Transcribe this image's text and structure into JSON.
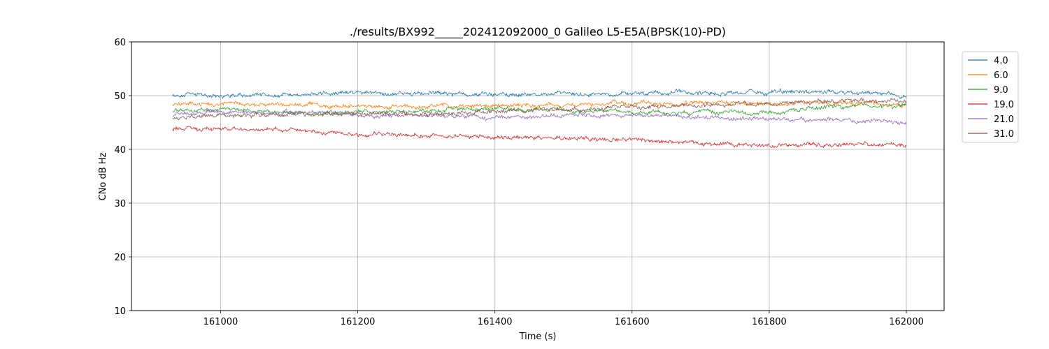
{
  "chart_data": {
    "type": "line",
    "title": "./results/BX992_____202412092000_0 Galileo L5-E5A(BPSK(10)-PD)",
    "xlabel": "Time (s)",
    "ylabel": "CNo dB Hz",
    "xlim": [
      160870,
      162055
    ],
    "ylim": [
      10,
      60
    ],
    "xticks": [
      161000,
      161200,
      161400,
      161600,
      161800,
      162000
    ],
    "yticks": [
      10,
      20,
      30,
      40,
      50,
      60
    ],
    "grid": true,
    "legend_position": "outside-top-right",
    "series": [
      {
        "name": "4.0",
        "color": "#1f77b4",
        "x": [
          160930,
          161000,
          161100,
          161200,
          161300,
          161400,
          161500,
          161600,
          161700,
          161800,
          161900,
          162000
        ],
        "values": [
          50.2,
          50.1,
          50.1,
          50.5,
          50.4,
          50.3,
          50.2,
          50.3,
          50.5,
          50.6,
          50.7,
          50.0
        ]
      },
      {
        "name": "6.0",
        "color": "#ff7f0e",
        "x": [
          160930,
          161000,
          161100,
          161200,
          161300,
          161400,
          161500,
          161600,
          161700,
          161800,
          161900,
          162000
        ],
        "values": [
          48.4,
          48.5,
          48.4,
          48.0,
          48.0,
          48.2,
          48.1,
          48.4,
          48.6,
          48.5,
          48.6,
          48.2
        ]
      },
      {
        "name": "9.0",
        "color": "#2ca02c",
        "x": [
          160930,
          161000,
          161100,
          161200,
          161300,
          161400,
          161500,
          161600,
          161700,
          161800,
          161900,
          162000
        ],
        "values": [
          47.2,
          47.5,
          46.8,
          46.8,
          47.3,
          47.6,
          47.3,
          47.0,
          46.8,
          46.8,
          48.0,
          48.2
        ]
      },
      {
        "name": "19.0",
        "color": "#d62728",
        "x": [
          160930,
          161000,
          161100,
          161200,
          161300,
          161400,
          161500,
          161600,
          161700,
          161800,
          161900,
          162000
        ],
        "values": [
          43.8,
          43.7,
          43.5,
          42.9,
          42.6,
          42.4,
          42.1,
          41.6,
          41.1,
          40.7,
          41.0,
          40.8
        ]
      },
      {
        "name": "21.0",
        "color": "#9467bd",
        "x": [
          160930,
          161000,
          161100,
          161200,
          161300,
          161400,
          161500,
          161600,
          161700,
          161800,
          161900,
          162000
        ],
        "values": [
          46.3,
          46.9,
          46.8,
          46.3,
          46.2,
          46.0,
          46.3,
          46.4,
          46.0,
          45.5,
          45.6,
          44.8
        ]
      },
      {
        "name": "31.0",
        "color": "#8c564b",
        "x": [
          160930,
          161000,
          161100,
          161200,
          161300,
          161400,
          161500,
          161600,
          161700,
          161800,
          161900,
          162000
        ],
        "values": [
          45.8,
          46.1,
          46.5,
          46.6,
          46.7,
          47.1,
          47.3,
          47.9,
          48.2,
          48.5,
          49.0,
          48.9
        ]
      }
    ]
  }
}
